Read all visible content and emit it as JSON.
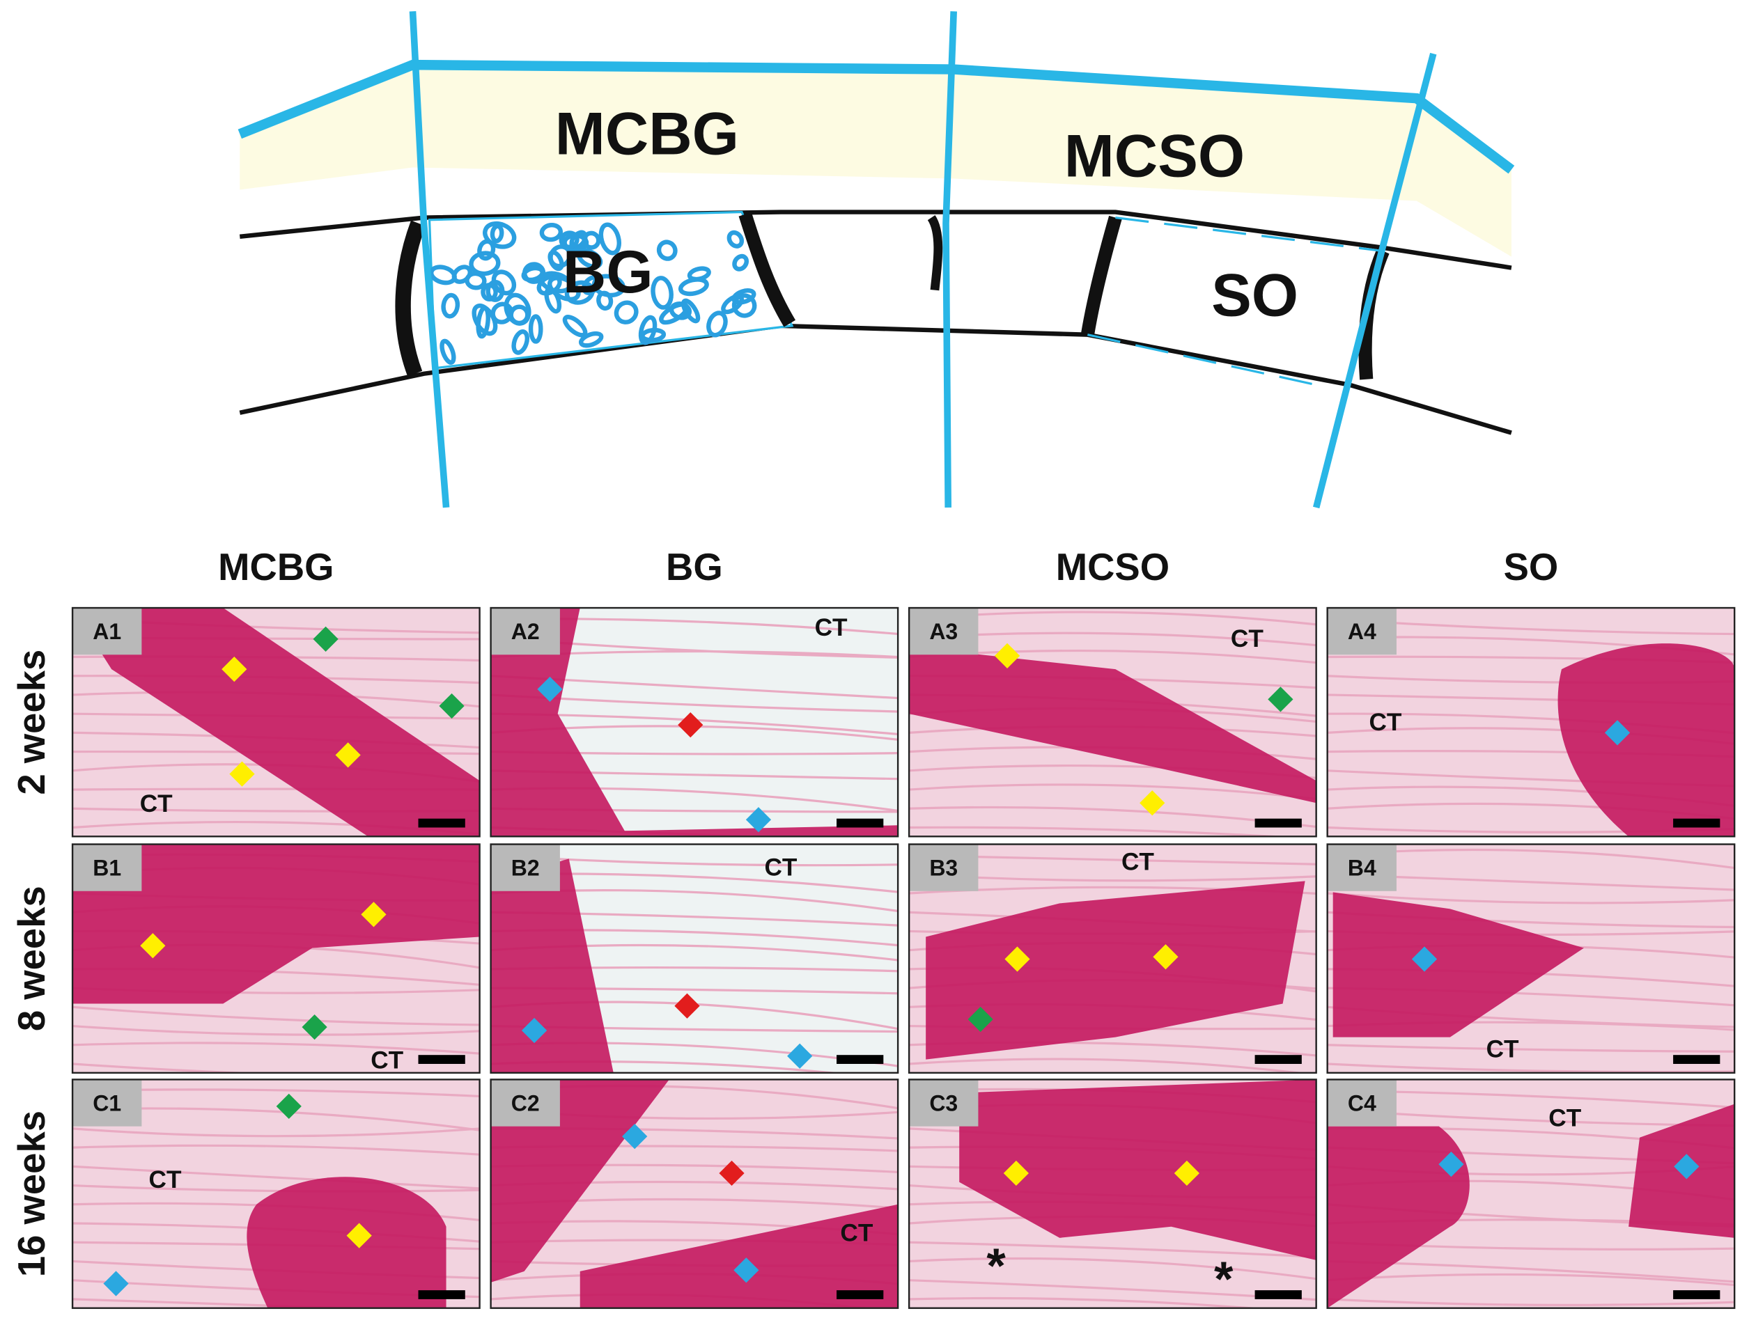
{
  "diagram": {
    "labels": [
      "MCBG",
      "BG",
      "MCSO",
      "SO"
    ]
  },
  "columns": [
    "MCBG",
    "BG",
    "MCSO",
    "SO"
  ],
  "rows": [
    "2 weeks",
    "8 weeks",
    "16 weeks"
  ],
  "panels": [
    {
      "label": "A1",
      "annotations": [
        "CT"
      ]
    },
    {
      "label": "A2",
      "annotations": [
        "CT"
      ]
    },
    {
      "label": "A3",
      "annotations": [
        "CT"
      ]
    },
    {
      "label": "A4",
      "annotations": [
        "CT"
      ]
    },
    {
      "label": "B1",
      "annotations": [
        "CT"
      ]
    },
    {
      "label": "B2",
      "annotations": [
        "CT"
      ]
    },
    {
      "label": "B3",
      "annotations": [
        "CT"
      ]
    },
    {
      "label": "B4",
      "annotations": [
        "CT"
      ]
    },
    {
      "label": "C1",
      "annotations": [
        "CT"
      ]
    },
    {
      "label": "C2",
      "annotations": [
        "CT"
      ]
    },
    {
      "label": "C3",
      "annotations": [
        "*",
        "*"
      ]
    },
    {
      "label": "C4",
      "annotations": [
        "CT"
      ]
    }
  ]
}
